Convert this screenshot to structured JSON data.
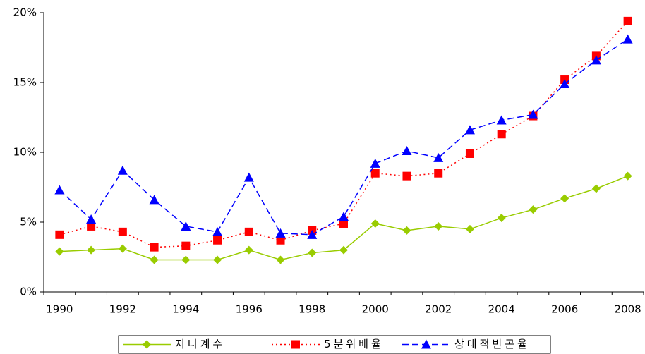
{
  "chart_data": {
    "type": "line",
    "categories": [
      "1990",
      null,
      "1992",
      null,
      "1994",
      null,
      "1996",
      null,
      "1998",
      null,
      "2000",
      null,
      "2002",
      null,
      "2004",
      null,
      "2006",
      null,
      "2008"
    ],
    "series": [
      {
        "name": "지니계수",
        "color": "#99cc00",
        "dash": "solid",
        "marker": "diamond",
        "values": [
          2.9,
          3.0,
          3.1,
          2.3,
          2.3,
          2.3,
          3.0,
          2.3,
          2.8,
          3.0,
          4.9,
          4.4,
          4.7,
          4.5,
          5.3,
          5.9,
          6.7,
          7.4,
          8.3
        ]
      },
      {
        "name": "5분위배율",
        "color": "#ff0000",
        "dash": "dot",
        "marker": "square",
        "values": [
          4.1,
          4.7,
          4.3,
          3.2,
          3.3,
          3.7,
          4.3,
          3.7,
          4.4,
          4.9,
          8.5,
          8.3,
          8.5,
          9.9,
          11.3,
          12.6,
          15.2,
          16.9,
          19.4
        ]
      },
      {
        "name": "상대적빈곤율",
        "color": "#0000ff",
        "dash": "dash",
        "marker": "triangle",
        "values": [
          7.3,
          5.2,
          8.7,
          6.6,
          4.7,
          4.3,
          8.2,
          4.2,
          4.1,
          5.4,
          9.2,
          10.1,
          9.6,
          11.6,
          12.3,
          12.7,
          14.9,
          16.6,
          18.1
        ]
      }
    ],
    "ylim": [
      0,
      20
    ],
    "yticks": [
      {
        "value": 0,
        "label": "0%"
      },
      {
        "value": 5,
        "label": "5%"
      },
      {
        "value": 10,
        "label": "10%"
      },
      {
        "value": 15,
        "label": "15%"
      },
      {
        "value": 20,
        "label": "20%"
      }
    ],
    "grid": false
  }
}
